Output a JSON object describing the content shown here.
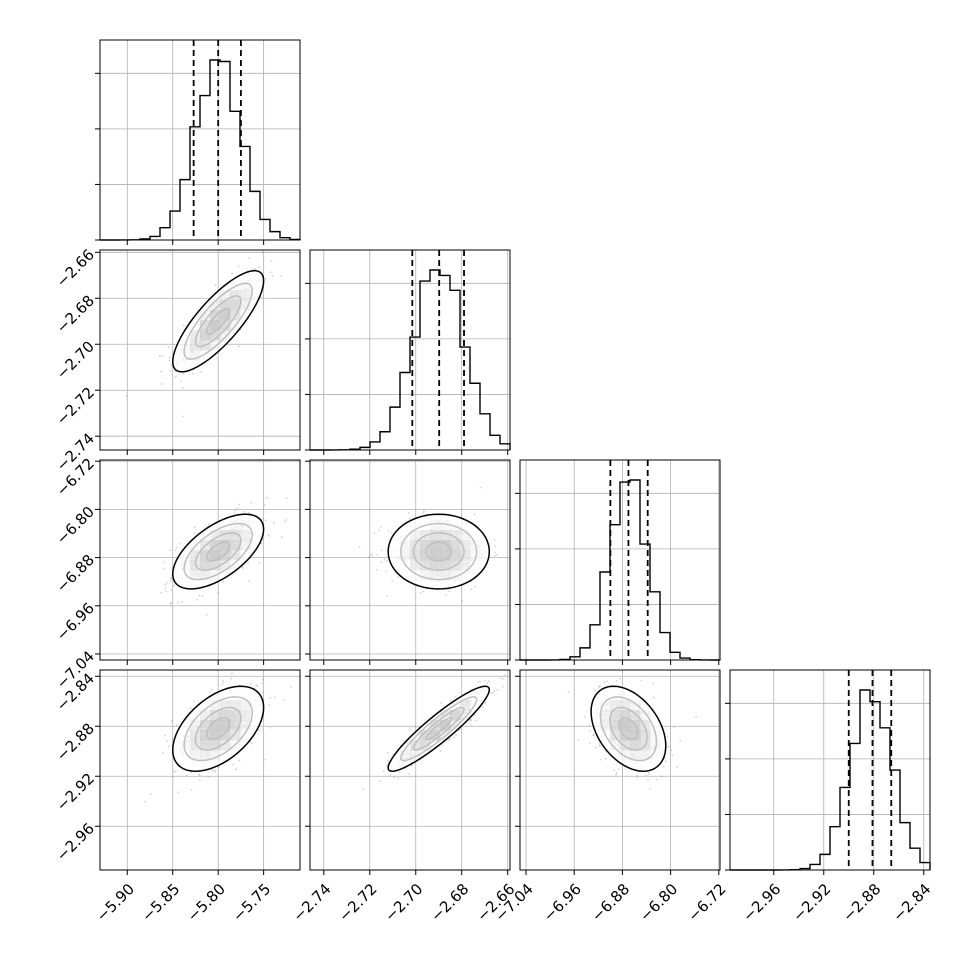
{
  "chart_data": {
    "type": "corner",
    "colors": {
      "line": "#000000",
      "grid": "#b0b0b0",
      "density": "#000000",
      "sample": "#808080"
    },
    "variables": [
      {
        "ticks": [
          -5.9,
          -5.85,
          -5.8,
          -5.75
        ],
        "tick_labels": [
          "−5.90",
          "−5.85",
          "−5.80",
          "−5.75"
        ],
        "range": [
          -5.93,
          -5.71
        ],
        "quantiles": [
          -5.827,
          -5.8,
          -5.775
        ],
        "mean": -5.8,
        "sd": 0.025
      },
      {
        "ticks": [
          -2.74,
          -2.72,
          -2.7,
          -2.68,
          -2.66
        ],
        "tick_labels": [
          "−2.74",
          "−2.72",
          "−2.70",
          "−2.68",
          "−2.66"
        ],
        "range": [
          -2.746,
          -2.659
        ],
        "quantiles": [
          -2.7015,
          -2.6898,
          -2.679
        ],
        "mean": -2.69,
        "sd": 0.011
      },
      {
        "ticks": [
          -7.04,
          -6.96,
          -6.88,
          -6.8,
          -6.72
        ],
        "tick_labels": [
          "−7.04",
          "−6.96",
          "−6.88",
          "−6.80",
          "−6.72"
        ],
        "range": [
          -7.05,
          -6.718
        ],
        "quantiles": [
          -6.9,
          -6.87,
          -6.838
        ],
        "mean": -6.87,
        "sd": 0.031
      },
      {
        "ticks": [
          -2.96,
          -2.92,
          -2.88,
          -2.84
        ],
        "tick_labels": [
          "−2.96",
          "−2.92",
          "−2.88",
          "−2.84"
        ],
        "range": [
          -2.995,
          -2.835
        ],
        "quantiles": [
          -2.9,
          -2.881,
          -2.866
        ],
        "mean": -2.882,
        "sd": 0.017
      }
    ],
    "correlations": [
      {
        "pair": [
          0,
          1
        ],
        "rho": 0.8
      },
      {
        "pair": [
          0,
          2
        ],
        "rho": 0.6
      },
      {
        "pair": [
          0,
          3
        ],
        "rho": 0.5
      },
      {
        "pair": [
          1,
          2
        ],
        "rho": 0.0
      },
      {
        "pair": [
          1,
          3
        ],
        "rho": 0.92
      },
      {
        "pair": [
          2,
          3
        ],
        "rho": -0.4
      }
    ],
    "grid": true,
    "histogram_bins": 20,
    "contour_levels": 4,
    "scatter_points": 400
  }
}
